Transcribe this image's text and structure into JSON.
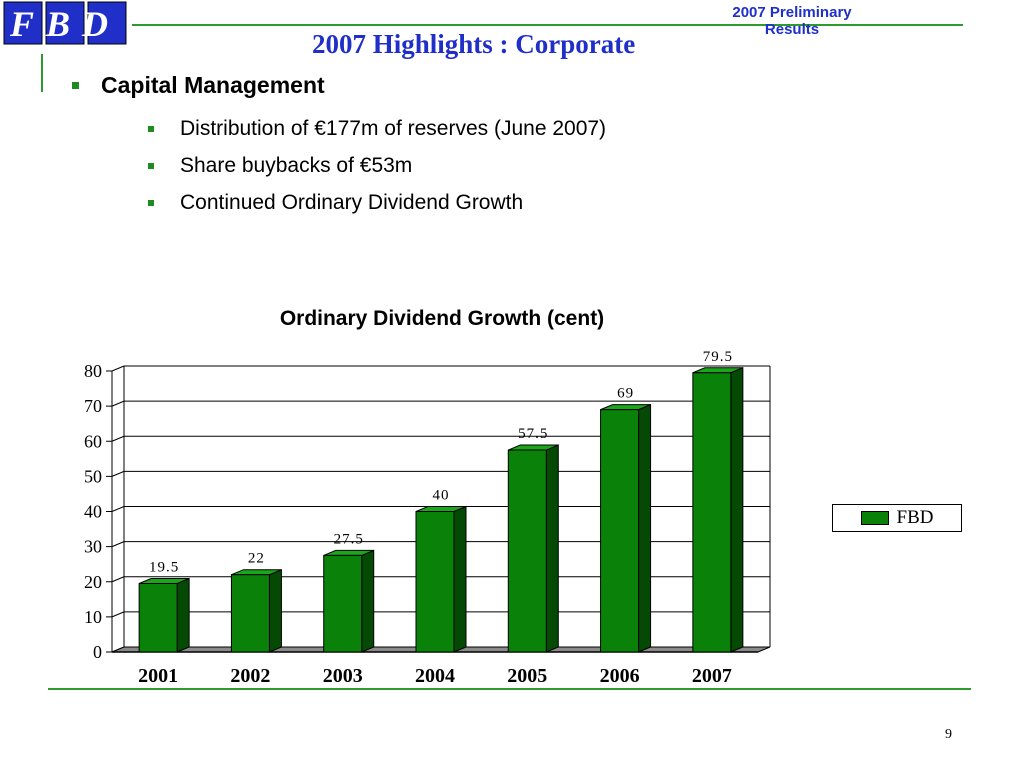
{
  "header": {
    "logo_text": "FBD",
    "right_text": "2007 Preliminary Results",
    "title": "2007 Highlights : Corporate"
  },
  "content": {
    "heading": "Capital Management",
    "items": [
      "Distribution of €177m of reserves (June 2007)",
      "Share buybacks of €53m",
      "Continued Ordinary Dividend Growth"
    ]
  },
  "chart_data": {
    "type": "bar",
    "title": "Ordinary Dividend Growth (cent)",
    "categories": [
      "2001",
      "2002",
      "2003",
      "2004",
      "2005",
      "2006",
      "2007"
    ],
    "series": [
      {
        "name": "FBD",
        "values": [
          19.5,
          22,
          27.5,
          40,
          57.5,
          69,
          79.5
        ]
      }
    ],
    "data_labels": [
      "19.5",
      "22",
      "27.5",
      "40",
      "57.5",
      "69",
      "79.5"
    ],
    "yticks": [
      0,
      10,
      20,
      30,
      40,
      50,
      60,
      70,
      80
    ],
    "ylim": [
      0,
      80
    ],
    "grid": true,
    "legend_position": "right",
    "bar_color": "#0a820a",
    "bar_side_color": "#044a04"
  },
  "footer": {
    "page_number": "9"
  }
}
